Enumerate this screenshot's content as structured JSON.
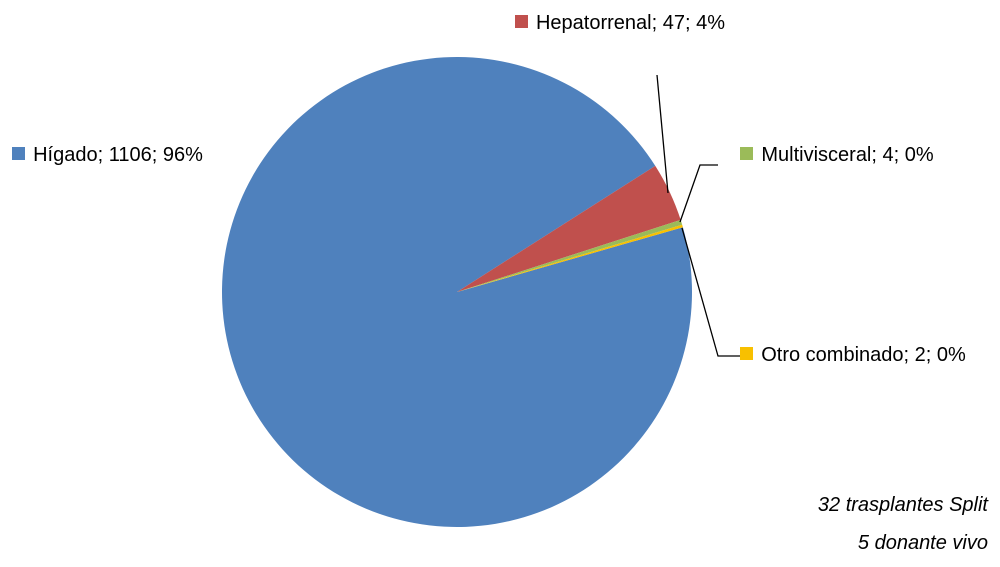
{
  "chart_data": {
    "type": "pie",
    "categories": [
      "Hígado",
      "Hepatorrenal",
      "Multivisceral",
      "Otro combinado"
    ],
    "values": [
      1106,
      47,
      4,
      2
    ],
    "value_labels": [
      "Hígado; 1106; 96%",
      "Hepatorrenal; 47; 4%",
      "Multivisceral; 4; 0%",
      "Otro combinado; 2; 0%"
    ],
    "colors": [
      "#4f81bd",
      "#c0504d",
      "#9bbb59",
      "#f8c000"
    ],
    "annotations": [
      "32 trasplantes Split",
      "5 donante vivo"
    ]
  }
}
